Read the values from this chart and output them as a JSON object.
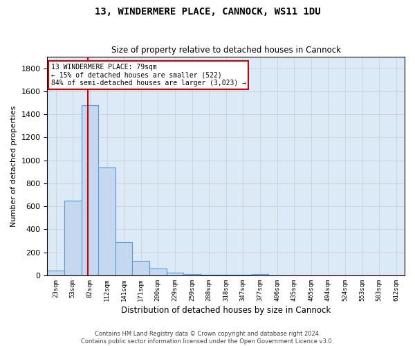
{
  "title": "13, WINDERMERE PLACE, CANNOCK, WS11 1DU",
  "subtitle": "Size of property relative to detached houses in Cannock",
  "xlabel": "Distribution of detached houses by size in Cannock",
  "ylabel": "Number of detached properties",
  "categories": [
    "23sqm",
    "53sqm",
    "82sqm",
    "112sqm",
    "141sqm",
    "171sqm",
    "200sqm",
    "229sqm",
    "259sqm",
    "288sqm",
    "318sqm",
    "347sqm",
    "377sqm",
    "406sqm",
    "435sqm",
    "465sqm",
    "494sqm",
    "524sqm",
    "553sqm",
    "583sqm",
    "612sqm"
  ],
  "values": [
    40,
    650,
    1480,
    940,
    290,
    125,
    60,
    25,
    10,
    8,
    5,
    3,
    12,
    0,
    0,
    0,
    0,
    0,
    0,
    0,
    0
  ],
  "bar_color": "#c5d8f0",
  "bar_edge_color": "#5b9bd5",
  "vline_color": "#cc0000",
  "annotation_line1": "13 WINDERMERE PLACE: 79sqm",
  "annotation_line2": "← 15% of detached houses are smaller (522)",
  "annotation_line3": "84% of semi-detached houses are larger (3,023) →",
  "annotation_box_color": "#ffffff",
  "annotation_box_edge": "#cc0000",
  "ylim": [
    0,
    1900
  ],
  "yticks": [
    0,
    200,
    400,
    600,
    800,
    1000,
    1200,
    1400,
    1600,
    1800
  ],
  "grid_color": "#cccccc",
  "bg_color": "#dce9f7",
  "footer_line1": "Contains HM Land Registry data © Crown copyright and database right 2024.",
  "footer_line2": "Contains public sector information licensed under the Open Government Licence v3.0."
}
